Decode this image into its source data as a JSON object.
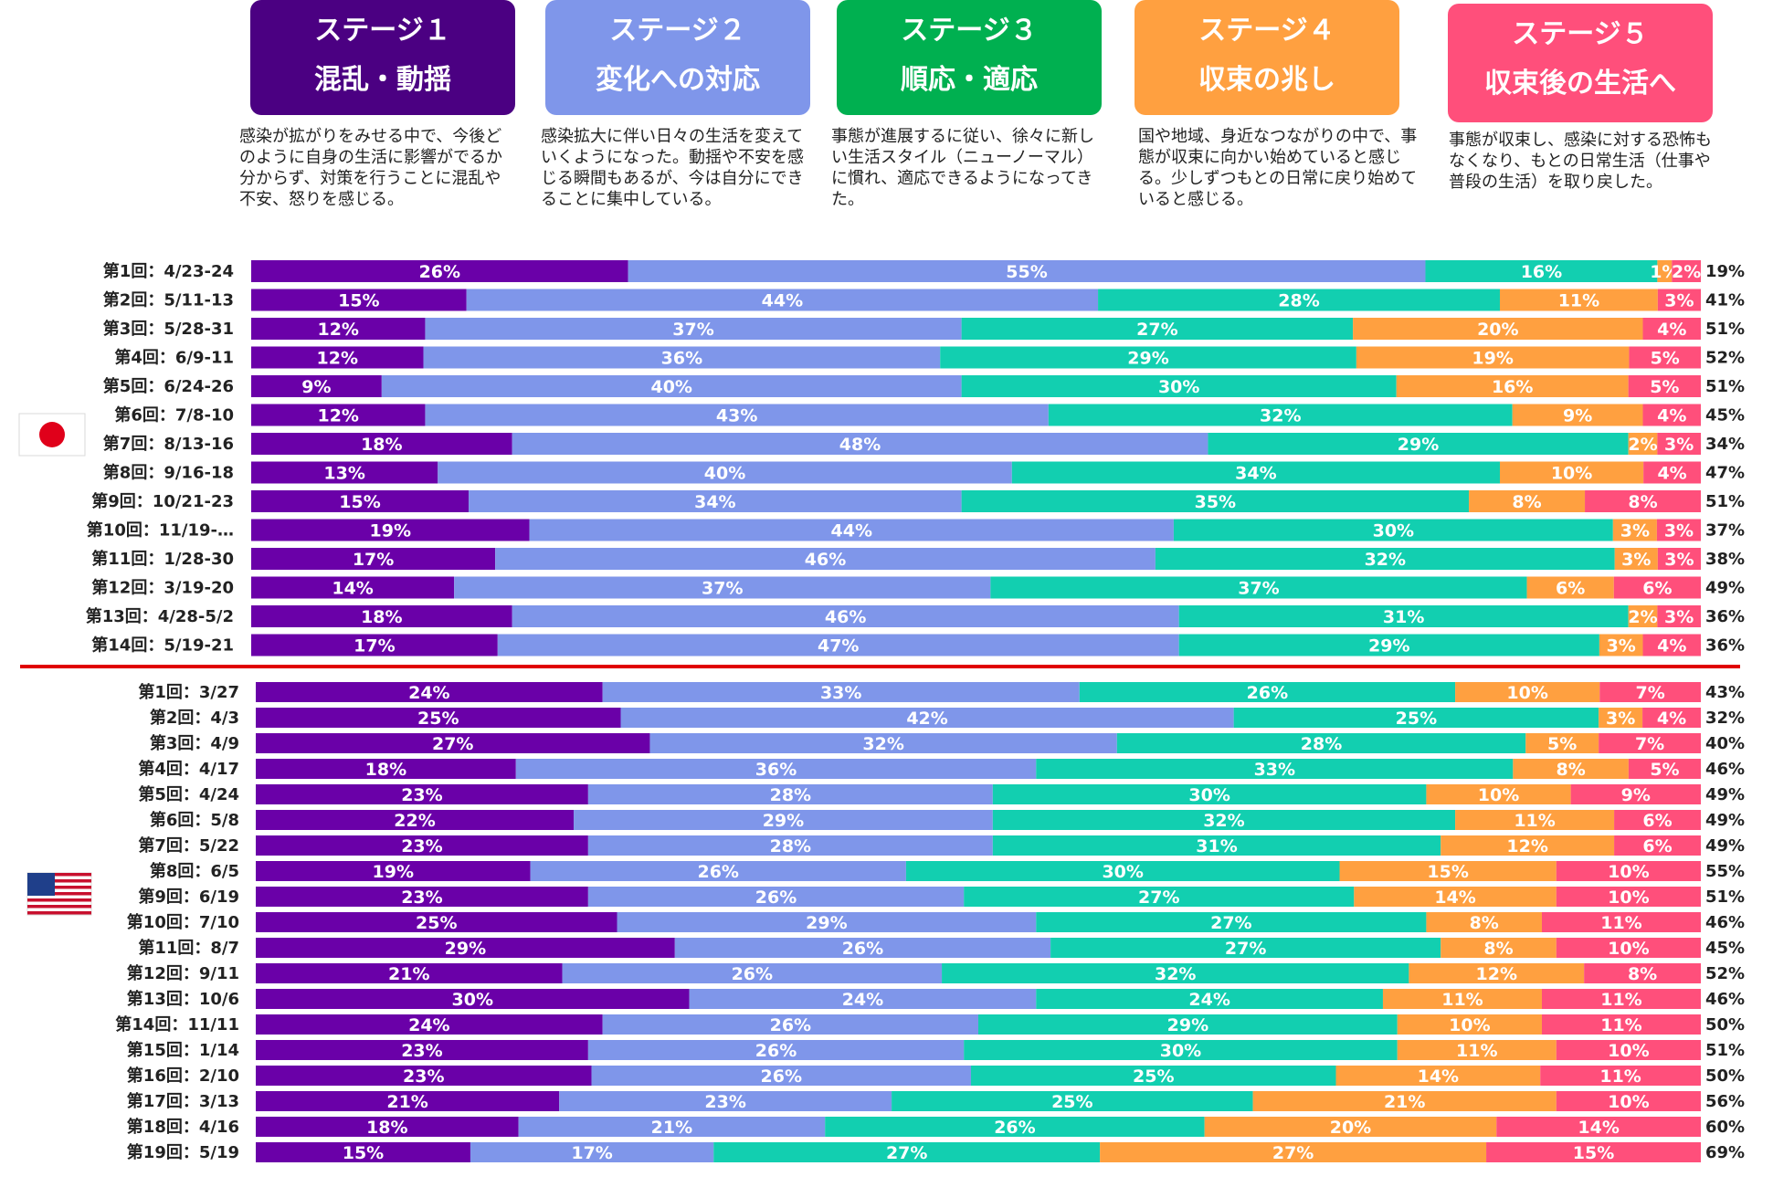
{
  "stages": [
    {
      "title": "ステージ１",
      "subtitle": "混乱・動揺",
      "color": "#4b0082",
      "desc": "感染が拡がりをみせる中で、今後どのように自身の生活に影響がでるか分からず、対策を行うことに混乱や不安、怒りを感じる。"
    },
    {
      "title": "ステージ２",
      "subtitle": "変化への対応",
      "color": "#7f96ea",
      "desc": "感染拡大に伴い日々の生活を変えていくようになった。動揺や不安を感じる瞬間もあるが、今は自分にできることに集中している。"
    },
    {
      "title": "ステージ３",
      "subtitle": "順応・適応",
      "color": "#00b050",
      "desc": "事態が進展するに従い、徐々に新しい生活スタイル（ニューノーマル）に慣れ、適応できるようになってきた。"
    },
    {
      "title": "ステージ４",
      "subtitle": "収束の兆し",
      "color": "#ffa040",
      "desc": "国や地域、身近なつながりの中で、事態が収束に向かい始めていると感じる。少しずつもとの日常に戻り始めていると感じる。"
    },
    {
      "title": "ステージ５",
      "subtitle": "収束後の生活へ",
      "color": "#ff4f7b",
      "desc": "事態が収束し、感染に対する恐怖もなくなり、もとの日常生活（仕事や普段の生活）を取り戻した。"
    }
  ],
  "segment_colors": [
    "#6a00a8",
    "#7f96ea",
    "#12cfb0",
    "#ffa040",
    "#ff4f7b"
  ],
  "icons": {
    "japan": "japan-flag-icon",
    "usa": "usa-flag-icon"
  },
  "divider_color": "#e00000",
  "chart_data": [
    {
      "type": "bar",
      "orientation": "horizontal-stacked-100",
      "group": "japan",
      "series_names": [
        "ステージ１",
        "ステージ２",
        "ステージ３",
        "ステージ４",
        "ステージ５"
      ],
      "categories": [
        "第1回：4/23-24",
        "第2回：5/11-13",
        "第3回：5/28-31",
        "第4回：6/9-11",
        "第5回：6/24-26",
        "第6回：7/8-10",
        "第7回：8/13-16",
        "第8回：9/16-18",
        "第9回：10/21-23",
        "第10回：11/19-…",
        "第11回：1/28-30",
        "第12回：3/19-20",
        "第13回：4/28-5/2",
        "第14回：5/19-21"
      ],
      "values": [
        [
          26,
          55,
          16,
          1,
          2
        ],
        [
          15,
          44,
          28,
          11,
          3
        ],
        [
          12,
          37,
          27,
          20,
          4
        ],
        [
          12,
          36,
          29,
          19,
          5
        ],
        [
          9,
          40,
          30,
          16,
          5
        ],
        [
          12,
          43,
          32,
          9,
          4
        ],
        [
          18,
          48,
          29,
          2,
          3
        ],
        [
          13,
          40,
          34,
          10,
          4
        ],
        [
          15,
          34,
          35,
          8,
          8
        ],
        [
          19,
          44,
          30,
          3,
          3
        ],
        [
          17,
          46,
          32,
          3,
          3
        ],
        [
          14,
          37,
          37,
          6,
          6
        ],
        [
          18,
          46,
          31,
          2,
          3
        ],
        [
          17,
          47,
          29,
          3,
          4
        ]
      ],
      "labels": [
        [
          "26%",
          "55%",
          "16%",
          "1%",
          "2%"
        ],
        [
          "15%",
          "44%",
          "28%",
          "11%",
          "3%"
        ],
        [
          "12%",
          "37%",
          "27%",
          "20%",
          "4%"
        ],
        [
          "12%",
          "36%",
          "29%",
          "19%",
          "5%"
        ],
        [
          "9%",
          "40%",
          "30%",
          "16%",
          "5%"
        ],
        [
          "12%",
          "43%",
          "32%",
          "9%",
          "4%"
        ],
        [
          "18%",
          "48%",
          "29%",
          "2%",
          "3%"
        ],
        [
          "13%",
          "40%",
          "34%",
          "10%",
          "4%"
        ],
        [
          "15%",
          "34%",
          "35%",
          "8%",
          "8%"
        ],
        [
          "19%",
          "44%",
          "30%",
          "3%",
          "3%"
        ],
        [
          "17%",
          "46%",
          "32%",
          "3%",
          "3%"
        ],
        [
          "14%",
          "37%",
          "37%",
          "6%",
          "6%"
        ],
        [
          "18%",
          "46%",
          "31%",
          "2%",
          "3%"
        ],
        [
          "17%",
          "47%",
          "29%",
          "3%",
          "4%"
        ]
      ],
      "totals": [
        "19%",
        "41%",
        "51%",
        "52%",
        "51%",
        "45%",
        "34%",
        "47%",
        "51%",
        "37%",
        "38%",
        "49%",
        "36%",
        "36%"
      ]
    },
    {
      "type": "bar",
      "orientation": "horizontal-stacked-100",
      "group": "usa",
      "series_names": [
        "ステージ１",
        "ステージ２",
        "ステージ３",
        "ステージ４",
        "ステージ５"
      ],
      "categories": [
        "第1回：3/27",
        "第2回：4/3",
        "第3回：4/9",
        "第4回：4/17",
        "第5回：4/24",
        "第6回：5/8",
        "第7回：5/22",
        "第8回：6/5",
        "第9回：6/19",
        "第10回：7/10",
        "第11回：8/7",
        "第12回：9/11",
        "第13回：10/6",
        "第14回：11/11",
        "第15回：1/14",
        "第16回：2/10",
        "第17回：3/13",
        "第18回：4/16",
        "第19回：5/19"
      ],
      "values": [
        [
          24,
          33,
          26,
          10,
          7
        ],
        [
          25,
          42,
          25,
          3,
          4
        ],
        [
          27,
          32,
          28,
          5,
          7
        ],
        [
          18,
          36,
          33,
          8,
          5
        ],
        [
          23,
          28,
          30,
          10,
          9
        ],
        [
          22,
          29,
          32,
          11,
          6
        ],
        [
          23,
          28,
          31,
          12,
          6
        ],
        [
          19,
          26,
          30,
          15,
          10
        ],
        [
          23,
          26,
          27,
          14,
          10
        ],
        [
          25,
          29,
          27,
          8,
          11
        ],
        [
          29,
          26,
          27,
          8,
          10
        ],
        [
          21,
          26,
          32,
          12,
          8
        ],
        [
          30,
          24,
          24,
          11,
          11
        ],
        [
          24,
          26,
          29,
          10,
          11
        ],
        [
          23,
          26,
          30,
          11,
          10
        ],
        [
          23,
          26,
          25,
          14,
          11
        ],
        [
          21,
          23,
          25,
          21,
          10
        ],
        [
          18,
          21,
          26,
          20,
          14
        ],
        [
          15,
          17,
          27,
          27,
          15
        ]
      ],
      "labels": [
        [
          "24%",
          "33%",
          "26%",
          "10%",
          "7%"
        ],
        [
          "25%",
          "42%",
          "25%",
          "3%",
          "4%"
        ],
        [
          "27%",
          "32%",
          "28%",
          "5%",
          "7%"
        ],
        [
          "18%",
          "36%",
          "33%",
          "8%",
          "5%"
        ],
        [
          "23%",
          "28%",
          "30%",
          "10%",
          "9%"
        ],
        [
          "22%",
          "29%",
          "32%",
          "11%",
          "6%"
        ],
        [
          "23%",
          "28%",
          "31%",
          "12%",
          "6%"
        ],
        [
          "19%",
          "26%",
          "30%",
          "15%",
          "10%"
        ],
        [
          "23%",
          "26%",
          "27%",
          "14%",
          "10%"
        ],
        [
          "25%",
          "29%",
          "27%",
          "8%",
          "11%"
        ],
        [
          "29%",
          "26%",
          "27%",
          "8%",
          "10%"
        ],
        [
          "21%",
          "26%",
          "32%",
          "12%",
          "8%"
        ],
        [
          "30%",
          "24%",
          "24%",
          "11%",
          "11%"
        ],
        [
          "24%",
          "26%",
          "29%",
          "10%",
          "11%"
        ],
        [
          "23%",
          "26%",
          "30%",
          "11%",
          "10%"
        ],
        [
          "23%",
          "26%",
          "25%",
          "14%",
          "11%"
        ],
        [
          "21%",
          "23%",
          "25%",
          "21%",
          "10%"
        ],
        [
          "18%",
          "21%",
          "26%",
          "20%",
          "14%"
        ],
        [
          "15%",
          "17%",
          "27%",
          "27%",
          "15%"
        ]
      ],
      "totals": [
        "43%",
        "32%",
        "40%",
        "46%",
        "49%",
        "49%",
        "49%",
        "55%",
        "51%",
        "46%",
        "45%",
        "52%",
        "46%",
        "50%",
        "51%",
        "50%",
        "56%",
        "60%",
        "69%"
      ]
    }
  ]
}
